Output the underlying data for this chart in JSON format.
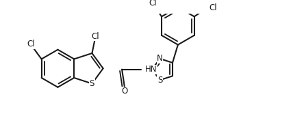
{
  "background_color": "#ffffff",
  "line_color": "#1a1a1a",
  "line_width": 1.5,
  "fig_width": 4.44,
  "fig_height": 1.89,
  "dpi": 100,
  "xlim": [
    -0.5,
    10.5
  ],
  "ylim": [
    -1.8,
    2.8
  ]
}
